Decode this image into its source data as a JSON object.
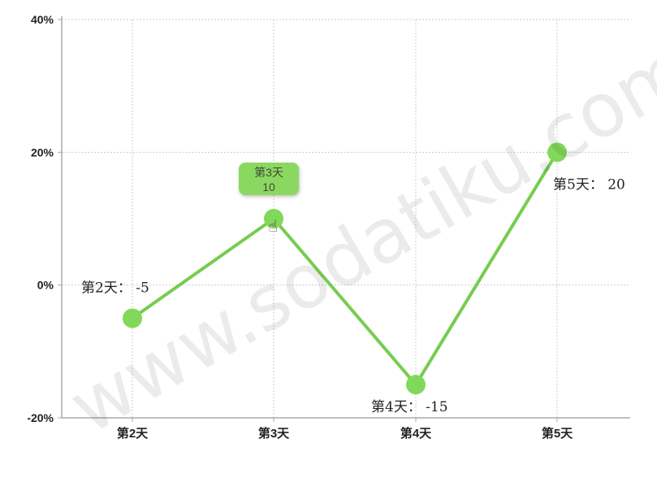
{
  "chart_data": {
    "type": "line",
    "categories": [
      "第2天",
      "第3天",
      "第4天",
      "第5天"
    ],
    "values": [
      -5,
      10,
      -15,
      20
    ],
    "y_ticks": [
      "40%",
      "20%",
      "0%",
      "-20%"
    ],
    "ylim": [
      -20,
      40
    ],
    "data_labels": [
      "第2天： -5",
      "",
      "第4天： -15",
      "第5天： 20"
    ],
    "grid": true,
    "line_color": "#77cc50",
    "point_color": "#82d85a"
  },
  "tooltip": {
    "category": "第3天",
    "value": "10"
  },
  "watermark": "www.sodatiku.com"
}
